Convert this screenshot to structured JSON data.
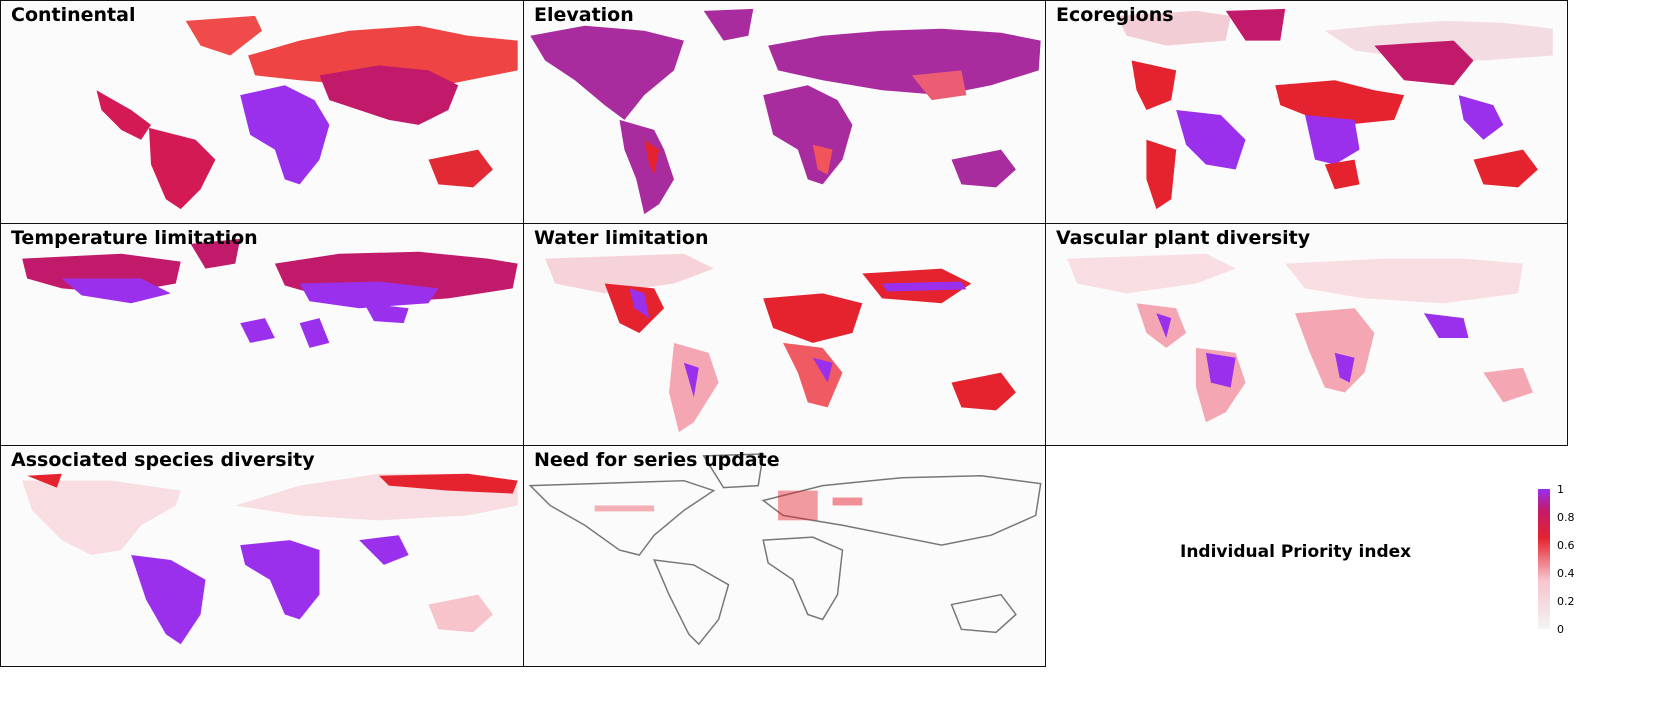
{
  "panels": [
    {
      "id": "continental",
      "title": "Continental"
    },
    {
      "id": "elevation",
      "title": "Elevation"
    },
    {
      "id": "ecoregions",
      "title": "Ecoregions"
    },
    {
      "id": "temperature",
      "title": "Temperature limitation"
    },
    {
      "id": "water",
      "title": "Water limitation"
    },
    {
      "id": "vascular",
      "title": "Vascular plant diversity"
    },
    {
      "id": "associated",
      "title": "Associated species diversity"
    },
    {
      "id": "series",
      "title": "Need for series update"
    }
  ],
  "legend": {
    "title": "Individual Priority index",
    "ticks": [
      "1",
      "0.8",
      "0.6",
      "0.4",
      "0.2",
      "0"
    ],
    "colors": {
      "low": "#f4f4f4",
      "mid_low": "#f7c4cc",
      "mid": "#e5232e",
      "mid_high": "#c21a6b",
      "high": "#9a2ef0"
    }
  }
}
